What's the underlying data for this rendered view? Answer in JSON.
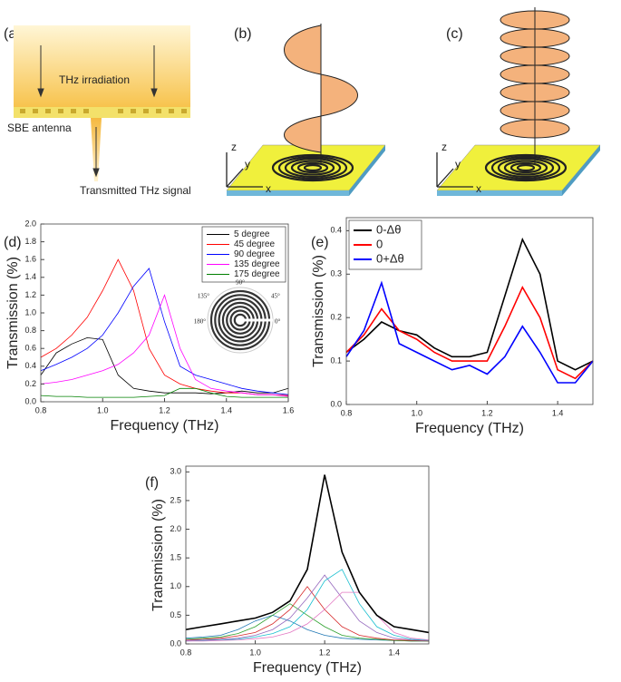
{
  "panels": {
    "a": {
      "label": "(a)",
      "irradiation": "THz irradiation",
      "antenna": "SBE antenna",
      "signal": "Transmitted THz signal"
    },
    "b": {
      "label": "(b)"
    },
    "c": {
      "label": "(c)"
    },
    "axes": {
      "z": "z",
      "y": "y",
      "x": "x"
    }
  },
  "chart_data": [
    {
      "type": "line",
      "label": "(d)",
      "x_label": "Frequency (THz)",
      "y_label": "Transmission (%)",
      "x": [
        0.8,
        0.85,
        0.9,
        0.95,
        1.0,
        1.05,
        1.1,
        1.15,
        1.2,
        1.25,
        1.3,
        1.35,
        1.4,
        1.45,
        1.5,
        1.55,
        1.6
      ],
      "series": [
        {
          "name": "5 degree",
          "color": "#000000",
          "values": [
            0.3,
            0.55,
            0.65,
            0.72,
            0.7,
            0.3,
            0.15,
            0.12,
            0.1,
            0.1,
            0.1,
            0.09,
            0.1,
            0.12,
            0.1,
            0.1,
            0.15
          ]
        },
        {
          "name": "45 degree",
          "color": "#ff0000",
          "values": [
            0.5,
            0.6,
            0.75,
            0.95,
            1.25,
            1.6,
            1.25,
            0.6,
            0.3,
            0.2,
            0.15,
            0.12,
            0.1,
            0.1,
            0.08,
            0.08,
            0.07
          ]
        },
        {
          "name": "90 degree",
          "color": "#0000ff",
          "values": [
            0.35,
            0.42,
            0.5,
            0.6,
            0.75,
            1.0,
            1.3,
            1.5,
            0.9,
            0.4,
            0.3,
            0.25,
            0.2,
            0.15,
            0.12,
            0.1,
            0.08
          ]
        },
        {
          "name": "135 degree",
          "color": "#ff00ff",
          "values": [
            0.2,
            0.22,
            0.25,
            0.3,
            0.35,
            0.42,
            0.55,
            0.75,
            1.2,
            0.6,
            0.25,
            0.15,
            0.12,
            0.1,
            0.08,
            0.08,
            0.06
          ]
        },
        {
          "name": "175 degree",
          "color": "#008000",
          "values": [
            0.07,
            0.06,
            0.06,
            0.05,
            0.05,
            0.05,
            0.05,
            0.06,
            0.07,
            0.15,
            0.15,
            0.1,
            0.06,
            0.05,
            0.05,
            0.05,
            0.05
          ]
        }
      ],
      "xlim": [
        0.8,
        1.6
      ],
      "xticks": [
        0.8,
        {
          "value": 1.0,
          "label": "1.0"
        },
        1.2,
        1.4,
        1.6
      ],
      "ylim": [
        0,
        2.0
      ],
      "yticks": [
        {
          "value": 0,
          "label": "0.0"
        },
        0.2,
        0.4,
        0.6,
        0.8,
        {
          "value": 1.0,
          "label": "1.0"
        },
        1.2,
        1.4,
        1.6,
        1.8,
        {
          "value": 2.0,
          "label": "2.0"
        }
      ],
      "legend": "upper right",
      "annotations": [
        "90°",
        "45°",
        "0°",
        "180°",
        "135°"
      ]
    },
    {
      "type": "line",
      "label": "(e)",
      "x_label": "Frequency (THz)",
      "y_label": "Transmission (%)",
      "x": [
        0.8,
        0.85,
        0.9,
        0.95,
        1.0,
        1.05,
        1.1,
        1.15,
        1.2,
        1.25,
        1.3,
        1.35,
        1.4,
        1.45,
        1.5
      ],
      "series": [
        {
          "name": "0-Δθ",
          "color": "#000000",
          "values": [
            0.12,
            0.15,
            0.19,
            0.17,
            0.16,
            0.13,
            0.11,
            0.11,
            0.12,
            0.25,
            0.38,
            0.3,
            0.1,
            0.08,
            0.1
          ]
        },
        {
          "name": "0",
          "color": "#ff0000",
          "values": [
            0.12,
            0.16,
            0.22,
            0.17,
            0.15,
            0.12,
            0.1,
            0.1,
            0.1,
            0.18,
            0.27,
            0.2,
            0.08,
            0.06,
            0.1
          ]
        },
        {
          "name": "0+Δθ",
          "color": "#0000ff",
          "values": [
            0.11,
            0.17,
            0.28,
            0.14,
            0.12,
            0.1,
            0.08,
            0.09,
            0.07,
            0.11,
            0.18,
            0.12,
            0.05,
            0.05,
            0.1
          ]
        }
      ],
      "xlim": [
        0.8,
        1.5
      ],
      "xticks": [
        0.8,
        {
          "value": 1.0,
          "label": "1.0"
        },
        1.2,
        1.4
      ],
      "ylim": [
        0,
        0.43
      ],
      "yticks": [
        {
          "value": 0,
          "label": "0.0"
        },
        0.1,
        0.2,
        0.3,
        0.4
      ],
      "legend": "upper left"
    },
    {
      "type": "line",
      "label": "(f)",
      "x_label": "Frequency (THz)",
      "y_label": "Transmission (%)",
      "x": [
        0.8,
        0.85,
        0.9,
        0.95,
        1.0,
        1.05,
        1.1,
        1.15,
        1.2,
        1.25,
        1.3,
        1.35,
        1.4,
        1.45,
        1.5
      ],
      "series": [
        {
          "color": "#1f77b4",
          "values": [
            0.1,
            0.12,
            0.15,
            0.25,
            0.4,
            0.5,
            0.4,
            0.25,
            0.15,
            0.1,
            0.08,
            0.07,
            0.06,
            0.05,
            0.05
          ]
        },
        {
          "color": "#2ca02c",
          "values": [
            0.08,
            0.1,
            0.12,
            0.18,
            0.3,
            0.5,
            0.7,
            0.5,
            0.3,
            0.15,
            0.1,
            0.08,
            0.06,
            0.05,
            0.05
          ]
        },
        {
          "color": "#d62728",
          "values": [
            0.07,
            0.08,
            0.1,
            0.14,
            0.2,
            0.35,
            0.6,
            1.0,
            0.6,
            0.3,
            0.15,
            0.1,
            0.07,
            0.06,
            0.05
          ]
        },
        {
          "color": "#9467bd",
          "values": [
            0.06,
            0.07,
            0.08,
            0.1,
            0.15,
            0.25,
            0.45,
            0.8,
            1.2,
            0.8,
            0.4,
            0.2,
            0.1,
            0.07,
            0.06
          ]
        },
        {
          "color": "#17becf",
          "values": [
            0.05,
            0.06,
            0.07,
            0.08,
            0.12,
            0.18,
            0.3,
            0.6,
            1.1,
            1.3,
            0.7,
            0.3,
            0.15,
            0.08,
            0.06
          ]
        },
        {
          "color": "#e377c2",
          "values": [
            0.05,
            0.05,
            0.06,
            0.07,
            0.09,
            0.12,
            0.2,
            0.35,
            0.6,
            0.9,
            0.9,
            0.5,
            0.2,
            0.1,
            0.07
          ]
        },
        {
          "color": "#000000",
          "values": [
            0.25,
            0.3,
            0.35,
            0.4,
            0.45,
            0.55,
            0.75,
            1.3,
            2.95,
            1.6,
            0.9,
            0.5,
            0.3,
            0.25,
            0.2
          ]
        }
      ],
      "xlim": [
        0.8,
        1.5
      ],
      "xticks": [
        0.8,
        {
          "value": 1.0,
          "label": "1.0"
        },
        1.2,
        1.4
      ],
      "ylim": [
        0,
        3.1
      ],
      "yticks": [
        {
          "value": 0,
          "label": "0.0"
        },
        0.5,
        {
          "value": 1.0,
          "label": "1.0"
        },
        1.5,
        {
          "value": 2.0,
          "label": "2.0"
        },
        2.5,
        {
          "value": 3.0,
          "label": "3.0"
        }
      ]
    }
  ]
}
